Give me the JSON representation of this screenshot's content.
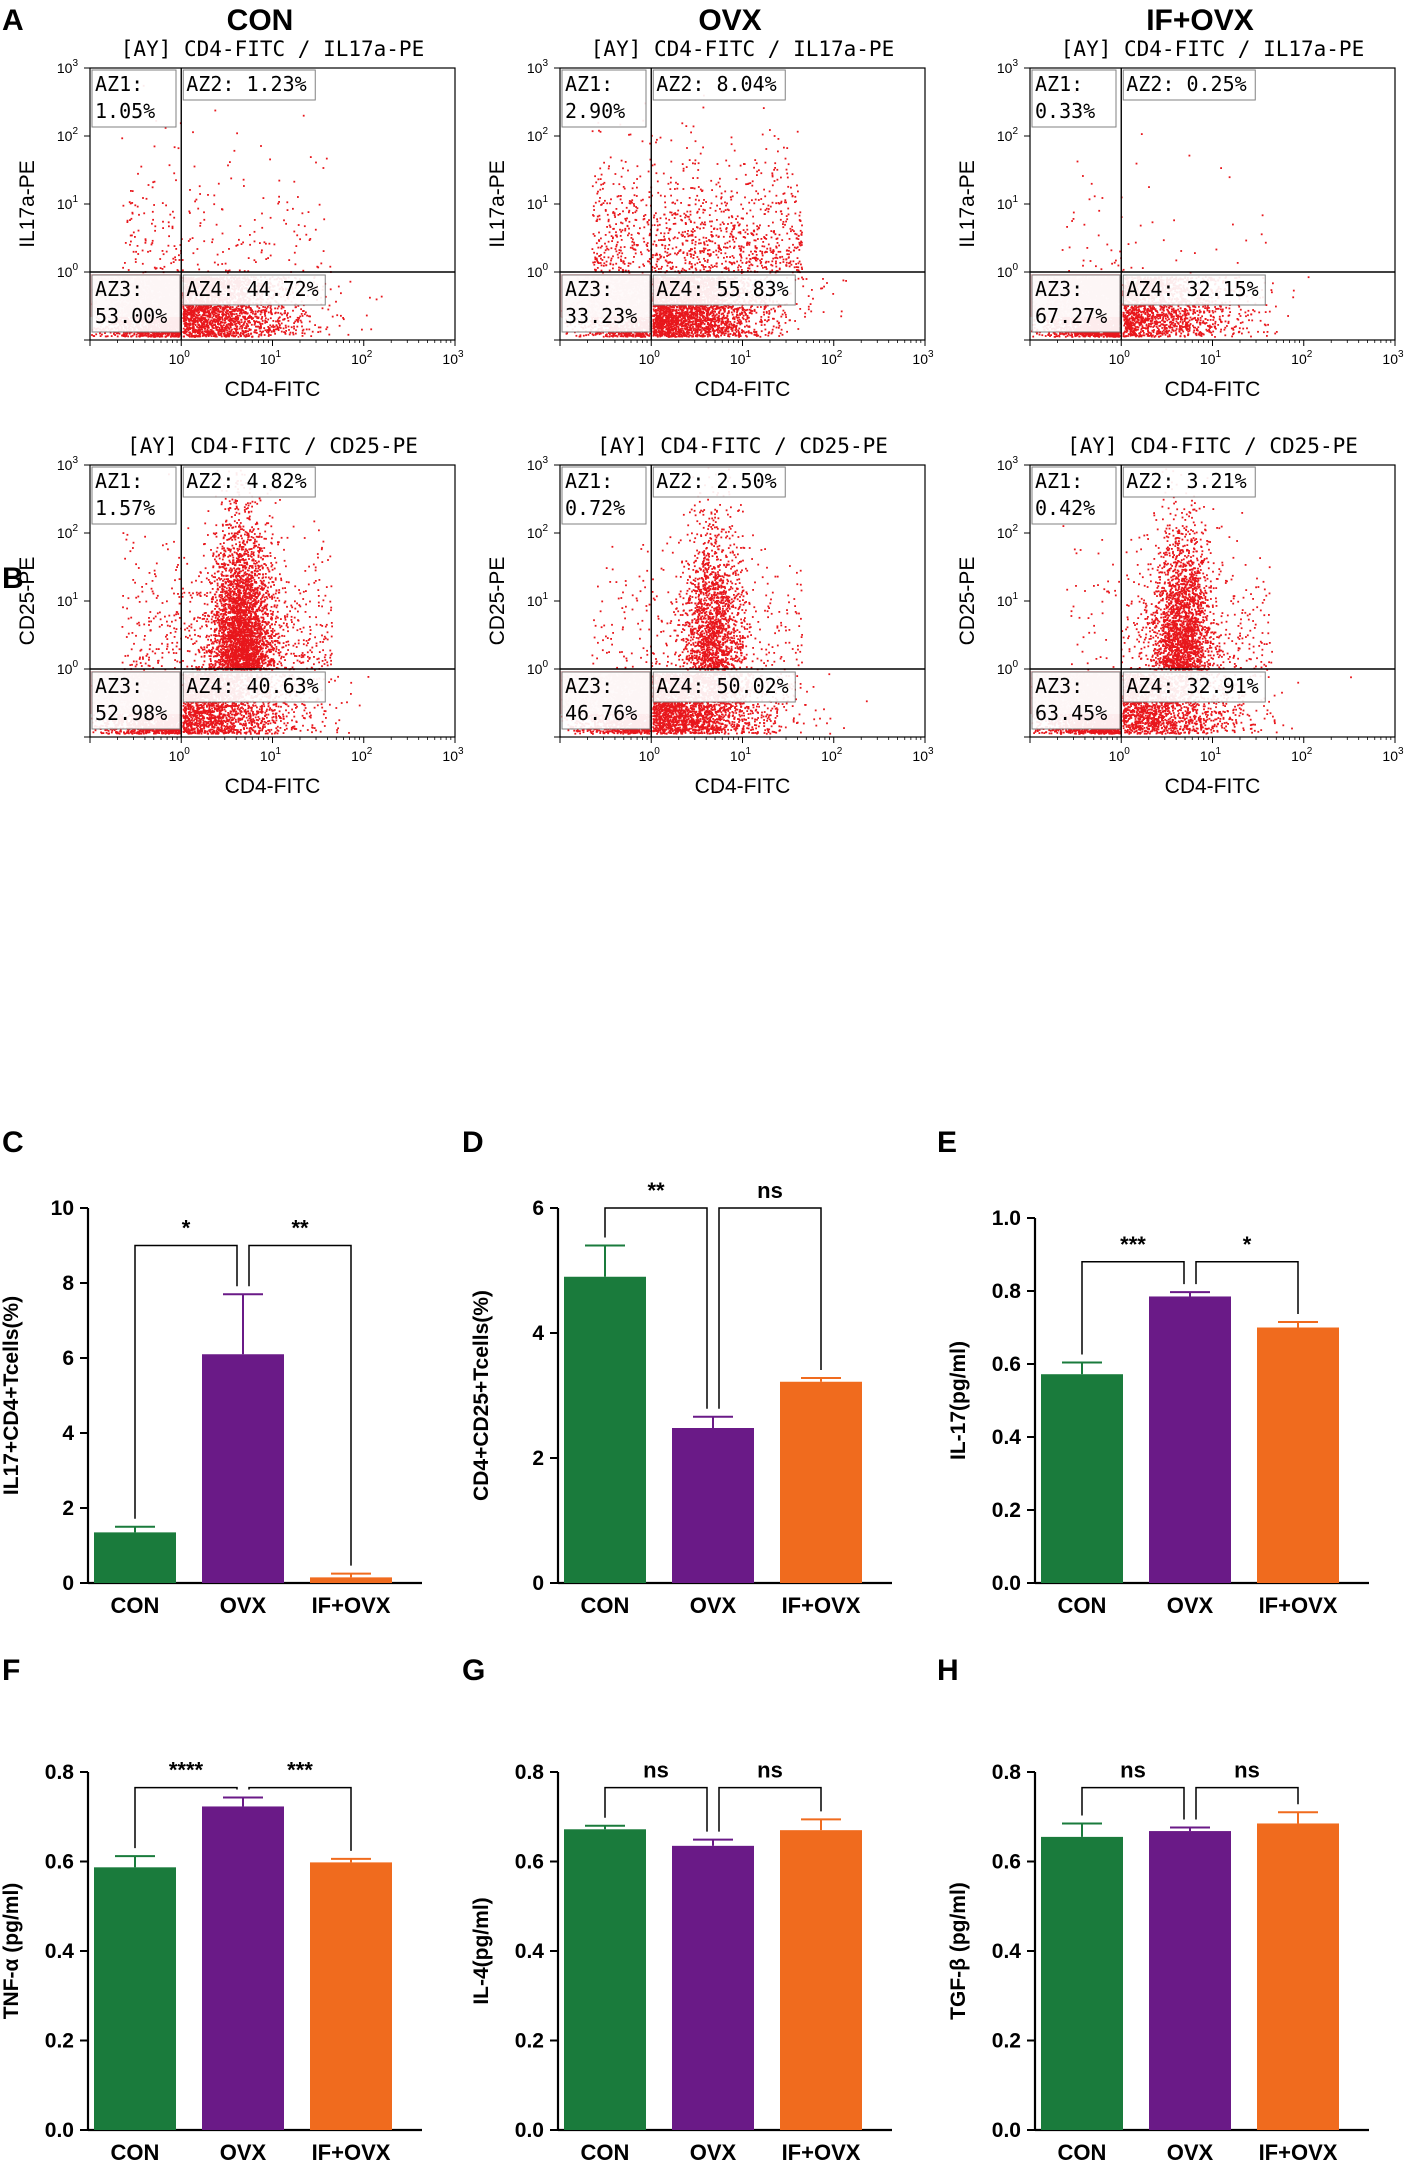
{
  "colors": {
    "con": "#1a7b3c",
    "ovx": "#6a1a87",
    "ifovx": "#f06b1e",
    "dots": "#e8171c",
    "gate": "#f6b7b9"
  },
  "panel_letters": [
    "A",
    "B",
    "C",
    "D",
    "E",
    "F",
    "G",
    "H"
  ],
  "group_titles": [
    "CON",
    "OVX",
    "IF+OVX"
  ],
  "flow_ticks": [
    "10",
    "0",
    "1",
    "2",
    "3"
  ],
  "chart_data": [
    {
      "id": "A",
      "type": "scatter",
      "title": "[AY] CD4-FITC / IL17a-PE",
      "xlabel": "CD4-FITC",
      "ylabel": "IL17a-PE",
      "xscale": "log",
      "yscale": "log",
      "xlim": [
        0.1,
        1000
      ],
      "ylim": [
        0.1,
        1000
      ],
      "quadrant_split": [
        1,
        1
      ],
      "samples": [
        {
          "group": "CON",
          "quadrants": {
            "AZ1": "1.05%",
            "AZ2": "1.23%",
            "AZ3": "53.00%",
            "AZ4": "44.72%"
          }
        },
        {
          "group": "OVX",
          "quadrants": {
            "AZ1": "2.90%",
            "AZ2": "8.04%",
            "AZ3": "33.23%",
            "AZ4": "55.83%"
          }
        },
        {
          "group": "IF+OVX",
          "quadrants": {
            "AZ1": "0.33%",
            "AZ2": "0.25%",
            "AZ3": "67.27%",
            "AZ4": "32.15%"
          }
        }
      ]
    },
    {
      "id": "B",
      "type": "scatter",
      "title": "[AY] CD4-FITC / CD25-PE",
      "xlabel": "CD4-FITC",
      "ylabel": "CD25-PE",
      "xscale": "log",
      "yscale": "log",
      "xlim": [
        0.1,
        1000
      ],
      "ylim": [
        0.1,
        1000
      ],
      "quadrant_split": [
        1,
        1
      ],
      "samples": [
        {
          "group": "CON",
          "quadrants": {
            "AZ1": "1.57%",
            "AZ2": "4.82%",
            "AZ3": "52.98%",
            "AZ4": "40.63%"
          }
        },
        {
          "group": "OVX",
          "quadrants": {
            "AZ1": "0.72%",
            "AZ2": "2.50%",
            "AZ3": "46.76%",
            "AZ4": "50.02%"
          }
        },
        {
          "group": "IF+OVX",
          "quadrants": {
            "AZ1": "0.42%",
            "AZ2": "3.21%",
            "AZ3": "63.45%",
            "AZ4": "32.91%"
          }
        }
      ]
    },
    {
      "id": "C",
      "type": "bar",
      "ylabel": "IL17+CD4+Tcells(%)",
      "categories": [
        "CON",
        "OVX",
        "IF+OVX"
      ],
      "values": [
        1.35,
        6.1,
        0.15
      ],
      "errors": [
        0.15,
        1.6,
        0.1
      ],
      "ylim": [
        0,
        10
      ],
      "yticks": [
        "0",
        "2",
        "4",
        "6",
        "8",
        "10"
      ],
      "comparisons": [
        {
          "from": 0,
          "to": 1,
          "label": "*",
          "y": 9.0
        },
        {
          "from": 1,
          "to": 2,
          "label": "**",
          "y": 9.0
        }
      ]
    },
    {
      "id": "D",
      "type": "bar",
      "ylabel": "CD4+CD25+Tcells(%)",
      "categories": [
        "CON",
        "OVX",
        "IF+OVX"
      ],
      "values": [
        4.9,
        2.48,
        3.22
      ],
      "errors": [
        0.5,
        0.18,
        0.06
      ],
      "ylim": [
        0,
        6
      ],
      "yticks": [
        "0",
        "2",
        "4",
        "6"
      ],
      "comparisons": [
        {
          "from": 0,
          "to": 1,
          "label": "**",
          "y": 6.0
        },
        {
          "from": 1,
          "to": 2,
          "label": "ns",
          "y": 6.0
        }
      ]
    },
    {
      "id": "E",
      "type": "bar",
      "ylabel": "IL-17(pg/ml)",
      "categories": [
        "CON",
        "OVX",
        "IF+OVX"
      ],
      "values": [
        0.572,
        0.785,
        0.7
      ],
      "errors": [
        0.032,
        0.012,
        0.015
      ],
      "ylim": [
        0,
        1.0
      ],
      "yticks": [
        "0.0",
        "0.2",
        "0.4",
        "0.6",
        "0.8",
        "1.0"
      ],
      "comparisons": [
        {
          "from": 0,
          "to": 1,
          "label": "***",
          "y": 0.88
        },
        {
          "from": 1,
          "to": 2,
          "label": "*",
          "y": 0.88
        }
      ]
    },
    {
      "id": "F",
      "type": "bar",
      "ylabel": "TNF-α (pg/ml)",
      "categories": [
        "CON",
        "OVX",
        "IF+OVX"
      ],
      "values": [
        0.587,
        0.723,
        0.598
      ],
      "errors": [
        0.025,
        0.02,
        0.008
      ],
      "ylim": [
        0,
        0.8
      ],
      "yticks": [
        "0.0",
        "0.2",
        "0.4",
        "0.6",
        "0.8"
      ],
      "comparisons": [
        {
          "from": 0,
          "to": 1,
          "label": "****",
          "y": 0.765
        },
        {
          "from": 1,
          "to": 2,
          "label": "***",
          "y": 0.765
        }
      ]
    },
    {
      "id": "G",
      "type": "bar",
      "ylabel": "IL-4(pg/ml)",
      "categories": [
        "CON",
        "OVX",
        "IF+OVX"
      ],
      "values": [
        0.672,
        0.635,
        0.67
      ],
      "errors": [
        0.008,
        0.014,
        0.024
      ],
      "ylim": [
        0,
        0.8
      ],
      "yticks": [
        "0.0",
        "0.2",
        "0.4",
        "0.6",
        "0.8"
      ],
      "comparisons": [
        {
          "from": 0,
          "to": 1,
          "label": "ns",
          "y": 0.765
        },
        {
          "from": 1,
          "to": 2,
          "label": "ns",
          "y": 0.765
        }
      ]
    },
    {
      "id": "H",
      "type": "bar",
      "ylabel": "TGF-β (pg/ml)",
      "categories": [
        "CON",
        "OVX",
        "IF+OVX"
      ],
      "values": [
        0.655,
        0.668,
        0.685
      ],
      "errors": [
        0.03,
        0.008,
        0.025
      ],
      "ylim": [
        0,
        0.8
      ],
      "yticks": [
        "0.0",
        "0.2",
        "0.4",
        "0.6",
        "0.8"
      ],
      "comparisons": [
        {
          "from": 0,
          "to": 1,
          "label": "ns",
          "y": 0.765
        },
        {
          "from": 1,
          "to": 2,
          "label": "ns",
          "y": 0.765
        }
      ]
    }
  ]
}
